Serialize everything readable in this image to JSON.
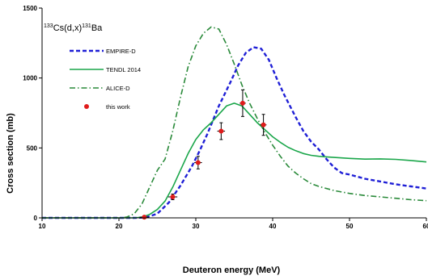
{
  "chart_data": {
    "type": "line",
    "title": {
      "mass_a": "133",
      "elem_a": "Cs(d,x)",
      "mass_b": "131",
      "elem_b": "Ba"
    },
    "xlabel": "Deuteron energy (MeV)",
    "ylabel": "Cross section (mb)",
    "xlim": [
      10,
      60
    ],
    "ylim": [
      0,
      1500
    ],
    "xticks": [
      "10",
      "20",
      "30",
      "40",
      "50",
      "60"
    ],
    "yticks": [
      "0",
      "500",
      "1000",
      "1500"
    ],
    "grid": false,
    "legend_position": "upper-left",
    "series": [
      {
        "name": "EMPIRE-D",
        "style": "dashed",
        "color": "#1f1fd6",
        "x": [
          10,
          20,
          22,
          23.5,
          25,
          26.5,
          28,
          29.5,
          30.5,
          31.5,
          33,
          34.5,
          35.5,
          36.5,
          37.5,
          38.5,
          39.5,
          40.5,
          41.5,
          43,
          44,
          45,
          46,
          47,
          48,
          49,
          50,
          52,
          54,
          56,
          58,
          60
        ],
        "y": [
          0,
          0,
          0,
          3,
          30,
          110,
          230,
          370,
          480,
          600,
          800,
          970,
          1090,
          1180,
          1220,
          1210,
          1130,
          1000,
          880,
          720,
          620,
          545,
          490,
          420,
          360,
          320,
          310,
          280,
          260,
          240,
          225,
          210
        ]
      },
      {
        "name": "TENDL 2014",
        "style": "solid",
        "color": "#1aa64a",
        "x": [
          10,
          20,
          22,
          23,
          24,
          25,
          26,
          27,
          28,
          29,
          30,
          31,
          32,
          33,
          34,
          35,
          36,
          37,
          38,
          39,
          40,
          41,
          42,
          43,
          44,
          45,
          46,
          47,
          48,
          50,
          52,
          54,
          56,
          58,
          60
        ],
        "y": [
          0,
          0,
          0,
          5,
          25,
          60,
          120,
          220,
          340,
          460,
          560,
          630,
          680,
          740,
          800,
          820,
          800,
          740,
          680,
          630,
          580,
          540,
          505,
          480,
          460,
          447,
          440,
          436,
          432,
          425,
          420,
          422,
          418,
          410,
          400
        ]
      },
      {
        "name": "ALICE-D",
        "style": "dashdot",
        "color": "#2a8a3a",
        "x": [
          10,
          20,
          21,
          22,
          23,
          24,
          25,
          26,
          27,
          28,
          29,
          30,
          31,
          32,
          33,
          34,
          35,
          36,
          37,
          38,
          39,
          40,
          41,
          42,
          43,
          44,
          45,
          46,
          48,
          50,
          52,
          54,
          56,
          58,
          60
        ],
        "y": [
          0,
          0,
          5,
          30,
          100,
          220,
          340,
          420,
          620,
          860,
          1080,
          1230,
          1320,
          1365,
          1350,
          1240,
          1100,
          950,
          820,
          710,
          610,
          520,
          440,
          370,
          320,
          280,
          245,
          225,
          195,
          175,
          160,
          150,
          140,
          130,
          123
        ]
      },
      {
        "name": "this work",
        "style": "markers",
        "color": "#e01b1b",
        "x": [
          23.3,
          27,
          30.3,
          33.3,
          36.1,
          38.8
        ],
        "y": [
          5,
          150,
          395,
          620,
          820,
          665
        ],
        "yerr": [
          8,
          20,
          45,
          60,
          95,
          75
        ],
        "xerr": [
          0.6,
          0.6,
          0.5,
          0.5,
          0.4,
          0.4
        ]
      }
    ]
  }
}
